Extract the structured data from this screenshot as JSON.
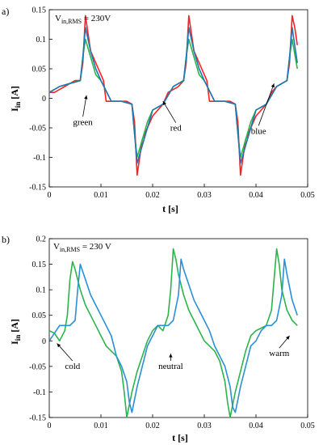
{
  "chart_data": [
    {
      "type": "line",
      "panel_label": "a)",
      "title": "",
      "annotation_main": "V",
      "annotation_sub": "in,RMS",
      "annotation_rest": " = 230V",
      "xlabel": "t [s]",
      "ylabel_main": "I",
      "ylabel_sub": "in",
      "ylabel_unit": " [A]",
      "xlim": [
        0,
        0.05
      ],
      "ylim": [
        -0.15,
        0.15
      ],
      "xticks": [
        "0",
        "0.01",
        "0.02",
        "0.03",
        "0.04",
        "0.05"
      ],
      "yticks": [
        "0.15",
        "0.1",
        "0.05",
        "0",
        "-0.05",
        "-0.1",
        "-0.15"
      ],
      "grid": false,
      "series": [
        {
          "name": "red",
          "color": "#ff2020",
          "x": [
            0,
            0.001,
            0.002,
            0.003,
            0.004,
            0.005,
            0.006,
            0.0065,
            0.007,
            0.0075,
            0.008,
            0.009,
            0.01,
            0.0105,
            0.011,
            0.012,
            0.013,
            0.014,
            0.015,
            0.016,
            0.0165,
            0.017,
            0.0175,
            0.018,
            0.019,
            0.02,
            0.021,
            0.022,
            0.023,
            0.024,
            0.025,
            0.026,
            0.0265,
            0.027,
            0.0275,
            0.028,
            0.029,
            0.03,
            0.0305,
            0.031,
            0.032,
            0.033,
            0.034,
            0.035,
            0.036,
            0.0365,
            0.037,
            0.0375,
            0.038,
            0.039,
            0.04,
            0.041,
            0.042,
            0.043,
            0.044,
            0.045,
            0.046,
            0.0465,
            0.047,
            0.0475,
            0.048
          ],
          "y": [
            0.01,
            0.01,
            0.015,
            0.02,
            0.025,
            0.03,
            0.03,
            0.06,
            0.14,
            0.11,
            0.08,
            0.06,
            0.04,
            0.03,
            -0.005,
            -0.005,
            -0.005,
            -0.005,
            -0.005,
            -0.01,
            -0.04,
            -0.13,
            -0.1,
            -0.07,
            -0.05,
            -0.03,
            -0.02,
            -0.01,
            0.01,
            0.015,
            0.02,
            0.03,
            0.06,
            0.14,
            0.11,
            0.08,
            0.06,
            0.04,
            0.03,
            -0.005,
            -0.005,
            -0.005,
            -0.005,
            -0.005,
            -0.01,
            -0.04,
            -0.13,
            -0.1,
            -0.07,
            -0.05,
            -0.03,
            -0.02,
            -0.01,
            0.01,
            0.02,
            0.025,
            0.03,
            0.06,
            0.14,
            0.12,
            0.09
          ]
        },
        {
          "name": "green",
          "color": "#2db34a",
          "x": [
            0,
            0.002,
            0.004,
            0.006,
            0.0065,
            0.007,
            0.008,
            0.009,
            0.01,
            0.012,
            0.014,
            0.016,
            0.0165,
            0.017,
            0.018,
            0.019,
            0.02,
            0.022,
            0.024,
            0.026,
            0.0265,
            0.027,
            0.028,
            0.029,
            0.03,
            0.032,
            0.034,
            0.036,
            0.0365,
            0.037,
            0.038,
            0.039,
            0.04,
            0.042,
            0.044,
            0.046,
            0.0465,
            0.047,
            0.048
          ],
          "y": [
            0.01,
            0.02,
            0.025,
            0.03,
            0.07,
            0.1,
            0.07,
            0.04,
            0.03,
            -0.005,
            -0.005,
            -0.01,
            -0.06,
            -0.1,
            -0.07,
            -0.04,
            -0.02,
            -0.01,
            0.02,
            0.03,
            0.07,
            0.1,
            0.07,
            0.04,
            0.03,
            -0.005,
            -0.005,
            -0.01,
            -0.06,
            -0.1,
            -0.07,
            -0.04,
            -0.02,
            -0.01,
            0.02,
            0.03,
            0.07,
            0.1,
            0.05
          ]
        },
        {
          "name": "blue",
          "color": "#1f77b4",
          "x": [
            0,
            0.002,
            0.004,
            0.006,
            0.0065,
            0.007,
            0.008,
            0.009,
            0.01,
            0.012,
            0.014,
            0.016,
            0.0165,
            0.017,
            0.018,
            0.019,
            0.02,
            0.022,
            0.024,
            0.026,
            0.0265,
            0.027,
            0.028,
            0.029,
            0.03,
            0.032,
            0.034,
            0.036,
            0.0365,
            0.037,
            0.038,
            0.039,
            0.04,
            0.042,
            0.044,
            0.046,
            0.0465,
            0.047,
            0.048
          ],
          "y": [
            0.01,
            0.02,
            0.025,
            0.03,
            0.07,
            0.12,
            0.08,
            0.05,
            0.03,
            -0.005,
            -0.005,
            -0.01,
            -0.06,
            -0.11,
            -0.08,
            -0.05,
            -0.02,
            -0.01,
            0.02,
            0.03,
            0.07,
            0.12,
            0.08,
            0.05,
            0.03,
            -0.005,
            -0.005,
            -0.01,
            -0.06,
            -0.11,
            -0.08,
            -0.05,
            -0.02,
            -0.01,
            0.02,
            0.03,
            0.07,
            0.12,
            0.06
          ]
        }
      ],
      "labels": [
        {
          "text": "green",
          "tx": 0.0065,
          "ty": -0.045,
          "ax": 0.0072,
          "ay": 0.005
        },
        {
          "text": "red",
          "tx": 0.0245,
          "ty": -0.055,
          "ax": 0.022,
          "ay": -0.005
        },
        {
          "text": "blue",
          "tx": 0.0405,
          "ty": -0.06,
          "ax": 0.0435,
          "ay": 0.025
        }
      ]
    },
    {
      "type": "line",
      "panel_label": "b)",
      "title": "",
      "annotation_main": "V",
      "annotation_sub": "in,RMS",
      "annotation_rest": " = 230 V",
      "xlabel": "t [s]",
      "ylabel_main": "I",
      "ylabel_sub": "in",
      "ylabel_unit": " [A]",
      "xlim": [
        0,
        0.05
      ],
      "ylim": [
        -0.15,
        0.2
      ],
      "xticks": [
        "0",
        "0.01",
        "0.02",
        "0.03",
        "0.04",
        "0.05"
      ],
      "yticks": [
        "0.2",
        "0.15",
        "0.1",
        "0.05",
        "0",
        "-0.05",
        "-0.1",
        "-0.15"
      ],
      "grid": false,
      "series": [
        {
          "name": "cold",
          "color": "#2db34a",
          "x": [
            0,
            0.001,
            0.002,
            0.003,
            0.0035,
            0.004,
            0.0045,
            0.005,
            0.006,
            0.007,
            0.008,
            0.009,
            0.01,
            0.011,
            0.012,
            0.013,
            0.014,
            0.0145,
            0.015,
            0.016,
            0.017,
            0.018,
            0.019,
            0.02,
            0.021,
            0.022,
            0.023,
            0.0235,
            0.024,
            0.0245,
            0.025,
            0.026,
            0.027,
            0.028,
            0.029,
            0.03,
            0.031,
            0.032,
            0.033,
            0.034,
            0.0345,
            0.035,
            0.036,
            0.037,
            0.038,
            0.039,
            0.04,
            0.041,
            0.042,
            0.043,
            0.0435,
            0.044,
            0.0445,
            0.045,
            0.046,
            0.047,
            0.048
          ],
          "y": [
            0.02,
            0.015,
            0.0,
            0.02,
            0.05,
            0.12,
            0.155,
            0.14,
            0.1,
            0.07,
            0.05,
            0.03,
            0.01,
            -0.01,
            -0.02,
            -0.03,
            -0.06,
            -0.1,
            -0.15,
            -0.1,
            -0.06,
            -0.03,
            0.0,
            0.02,
            0.03,
            0.02,
            0.05,
            0.1,
            0.18,
            0.16,
            0.13,
            0.09,
            0.06,
            0.04,
            0.02,
            0.0,
            -0.01,
            -0.02,
            -0.04,
            -0.08,
            -0.12,
            -0.15,
            -0.1,
            -0.06,
            -0.02,
            0.01,
            0.02,
            0.025,
            0.03,
            0.06,
            0.12,
            0.18,
            0.15,
            0.1,
            0.06,
            0.04,
            0.03
          ]
        },
        {
          "name": "neutral",
          "color": "#2a8fd6",
          "x": [
            0,
            0.001,
            0.002,
            0.003,
            0.004,
            0.005,
            0.0055,
            0.006,
            0.007,
            0.008,
            0.009,
            0.01,
            0.011,
            0.012,
            0.013,
            0.014,
            0.015,
            0.0155,
            0.016,
            0.017,
            0.018,
            0.019,
            0.02,
            0.021,
            0.022,
            0.023,
            0.024,
            0.025,
            0.0255,
            0.026,
            0.027,
            0.028,
            0.029,
            0.03,
            0.031,
            0.032,
            0.033,
            0.034,
            0.035,
            0.0355,
            0.036,
            0.037,
            0.038,
            0.039,
            0.04,
            0.041,
            0.042,
            0.043,
            0.044,
            0.045,
            0.0455,
            0.046,
            0.047,
            0.048
          ],
          "y": [
            0.0,
            0.015,
            0.03,
            0.03,
            0.03,
            0.04,
            0.1,
            0.15,
            0.12,
            0.09,
            0.07,
            0.05,
            0.03,
            0.01,
            -0.03,
            -0.05,
            -0.08,
            -0.12,
            -0.14,
            -0.09,
            -0.05,
            -0.01,
            0.01,
            0.03,
            0.03,
            0.03,
            0.04,
            0.09,
            0.16,
            0.14,
            0.11,
            0.08,
            0.06,
            0.04,
            0.02,
            -0.01,
            -0.03,
            -0.05,
            -0.09,
            -0.13,
            -0.14,
            -0.09,
            -0.05,
            -0.01,
            0.0,
            0.02,
            0.03,
            0.03,
            0.04,
            0.09,
            0.16,
            0.13,
            0.08,
            0.05
          ]
        }
      ],
      "labels": [
        {
          "text": "cold",
          "tx": 0.0045,
          "ty": -0.055,
          "ax": 0.0015,
          "ay": -0.005
        },
        {
          "text": "neutral",
          "tx": 0.0235,
          "ty": -0.055,
          "ax": 0.0235,
          "ay": -0.025
        },
        {
          "text": "warm",
          "tx": 0.0445,
          "ty": -0.03,
          "ax": 0.0465,
          "ay": 0.01
        }
      ]
    }
  ]
}
